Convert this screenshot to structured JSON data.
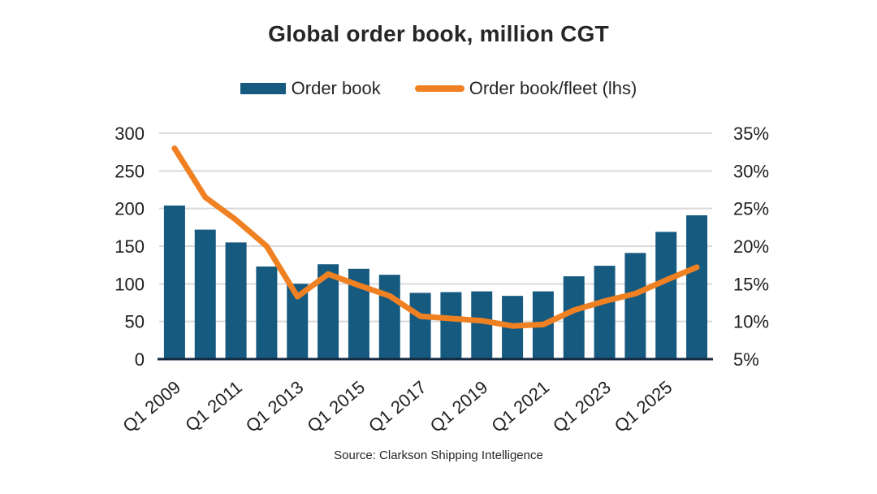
{
  "title": "Global order book, million CGT",
  "source": "Source: Clarkson Shipping Intelligence",
  "legend": {
    "position": "top",
    "items": [
      {
        "label": "Order book",
        "swatch": "bar-swatch"
      },
      {
        "label": "Order book/fleet (lhs)",
        "swatch": "line-swatch"
      }
    ]
  },
  "colors": {
    "bar": "#165a80",
    "line": "#f08122",
    "grid": "#d9d9d9",
    "axis_line": "#152a40",
    "text": "#202020"
  },
  "chart_data": {
    "type": "combo",
    "title": "Global order book, million CGT",
    "grid": true,
    "legend_position": "top",
    "n_points": 18,
    "x_tick_labels": [
      "Q1 2009",
      "Q1 2011",
      "Q1 2013",
      "Q1 2015",
      "Q1 2017",
      "Q1 2019",
      "Q1 2021",
      "Q1 2023",
      "Q1 2025"
    ],
    "x_tick_every": 2,
    "left_axis": {
      "min": 0,
      "max": 300,
      "step": 50,
      "ticks": [
        "0",
        "50",
        "100",
        "150",
        "200",
        "250",
        "300"
      ]
    },
    "right_axis": {
      "min": 5,
      "max": 35,
      "step": 5,
      "ticks": [
        "5%",
        "10%",
        "15%",
        "20%",
        "25%",
        "30%",
        "35%"
      ]
    },
    "series": [
      {
        "name": "Order book",
        "type": "bar",
        "axis": "left",
        "color": "#165a80",
        "values": [
          204,
          172,
          155,
          123,
          100,
          126,
          120,
          112,
          88,
          89,
          90,
          84,
          90,
          110,
          124,
          141,
          169,
          191
        ]
      },
      {
        "name": "Order book/fleet (lhs)",
        "type": "line",
        "axis": "right",
        "color": "#f08122",
        "values": [
          33,
          26.5,
          23.5,
          20,
          13.3,
          16.3,
          14.8,
          13.4,
          10.7,
          10.4,
          10.1,
          9.4,
          9.6,
          11.5,
          12.7,
          13.7,
          15.5,
          17.2
        ]
      }
    ]
  }
}
